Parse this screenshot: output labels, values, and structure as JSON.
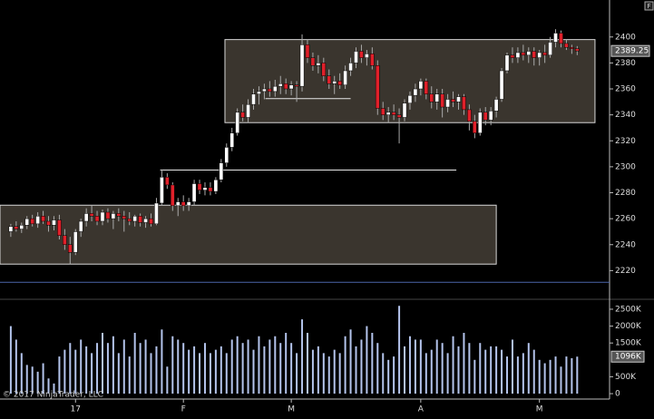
{
  "chart_data": {
    "type": "candlestick",
    "copyright": "© 2017 NinjaTrader, LLC",
    "corner_button": "F",
    "xlim": [
      -2,
      111
    ],
    "xticks": [
      {
        "value": 12,
        "label": "17"
      },
      {
        "value": 32,
        "label": "F"
      },
      {
        "value": 52,
        "label": "M"
      },
      {
        "value": 76,
        "label": "A"
      },
      {
        "value": 98,
        "label": "M"
      }
    ],
    "ylim": [
      2200,
      2425
    ],
    "yticks": [
      2220,
      2240,
      2260,
      2280,
      2300,
      2320,
      2340,
      2360,
      2380,
      2400
    ],
    "y2lim": [
      -160000,
      2660000
    ],
    "y2ticks": [
      0,
      {
        "value": 500000,
        "label": "500K"
      },
      {
        "value": 1500000,
        "label": "1500K"
      },
      {
        "value": 2000000,
        "label": "2000K"
      },
      {
        "value": 2500000,
        "label": "2500K"
      }
    ],
    "up_color": "#ffffff",
    "down_color": "#e0202a",
    "volume_color": "#b4c4ec",
    "last_price": 2389.25,
    "last_volume": {
      "value": 1096000,
      "label": "1096K"
    },
    "boxes": [
      {
        "x": [
          -2,
          90
        ],
        "y": [
          2225,
          2270.4
        ]
      },
      {
        "x": [
          39.7,
          108.3
        ],
        "y": [
          2334,
          2398
        ]
      }
    ],
    "lines": [
      {
        "x": [
          27.7,
          82.6
        ],
        "y": 2297.5,
        "color": "#e8e8e8"
      },
      {
        "x": [
          47.2,
          63
        ],
        "y": 2352.5,
        "color": "#e8e8e8"
      },
      {
        "x": [
          -2,
          111
        ],
        "y": 2211,
        "color": "#4a64a8"
      }
    ],
    "ohlc": [
      [
        2250,
        2256,
        2246,
        2254
      ],
      [
        2254,
        2258,
        2250,
        2252
      ],
      [
        2252,
        2257,
        2249,
        2255
      ],
      [
        2255,
        2262,
        2252,
        2260
      ],
      [
        2260,
        2263,
        2254,
        2256
      ],
      [
        2256,
        2265,
        2253,
        2262
      ],
      [
        2262,
        2266,
        2256,
        2258
      ],
      [
        2258,
        2262,
        2250,
        2255
      ],
      [
        2255,
        2262,
        2251,
        2259
      ],
      [
        2259,
        2263,
        2244,
        2247
      ],
      [
        2247,
        2252,
        2236,
        2240
      ],
      [
        2240,
        2246,
        2225,
        2234
      ],
      [
        2234,
        2252,
        2232,
        2250
      ],
      [
        2250,
        2260,
        2246,
        2258
      ],
      [
        2258,
        2268,
        2254,
        2264
      ],
      [
        2264,
        2270,
        2258,
        2262
      ],
      [
        2262,
        2266,
        2255,
        2258
      ],
      [
        2258,
        2267,
        2255,
        2265
      ],
      [
        2265,
        2268,
        2257,
        2260
      ],
      [
        2260,
        2266,
        2252,
        2264
      ],
      [
        2264,
        2268,
        2258,
        2262
      ],
      [
        2262,
        2266,
        2250,
        2260
      ],
      [
        2260,
        2265,
        2255,
        2258
      ],
      [
        2258,
        2263,
        2254,
        2262
      ],
      [
        2262,
        2264,
        2254,
        2257
      ],
      [
        2257,
        2262,
        2253,
        2260
      ],
      [
        2260,
        2264,
        2254,
        2256
      ],
      [
        2256,
        2276,
        2255,
        2272
      ],
      [
        2272,
        2298,
        2270,
        2292
      ],
      [
        2292,
        2295,
        2283,
        2286
      ],
      [
        2286,
        2288,
        2266,
        2270
      ],
      [
        2270,
        2276,
        2262,
        2273
      ],
      [
        2273,
        2278,
        2266,
        2270
      ],
      [
        2270,
        2276,
        2266,
        2273
      ],
      [
        2273,
        2290,
        2270,
        2287
      ],
      [
        2287,
        2290,
        2279,
        2282
      ],
      [
        2282,
        2288,
        2278,
        2284
      ],
      [
        2284,
        2288,
        2278,
        2281
      ],
      [
        2281,
        2292,
        2279,
        2290
      ],
      [
        2290,
        2306,
        2288,
        2303
      ],
      [
        2303,
        2318,
        2300,
        2315
      ],
      [
        2315,
        2330,
        2312,
        2326
      ],
      [
        2326,
        2345,
        2324,
        2342
      ],
      [
        2342,
        2348,
        2335,
        2338
      ],
      [
        2338,
        2352,
        2334,
        2348
      ],
      [
        2348,
        2360,
        2344,
        2356
      ],
      [
        2356,
        2362,
        2348,
        2358
      ],
      [
        2358,
        2364,
        2352,
        2360
      ],
      [
        2360,
        2366,
        2354,
        2358
      ],
      [
        2358,
        2367,
        2354,
        2362
      ],
      [
        2362,
        2370,
        2356,
        2364
      ],
      [
        2364,
        2368,
        2356,
        2360
      ],
      [
        2360,
        2366,
        2355,
        2363
      ],
      [
        2363,
        2366,
        2350,
        2362
      ],
      [
        2362,
        2402,
        2358,
        2394
      ],
      [
        2394,
        2398,
        2380,
        2384
      ],
      [
        2384,
        2388,
        2374,
        2378
      ],
      [
        2378,
        2386,
        2372,
        2380
      ],
      [
        2380,
        2384,
        2366,
        2370
      ],
      [
        2370,
        2375,
        2360,
        2364
      ],
      [
        2364,
        2370,
        2356,
        2366
      ],
      [
        2366,
        2372,
        2360,
        2363
      ],
      [
        2363,
        2378,
        2360,
        2374
      ],
      [
        2374,
        2384,
        2370,
        2380
      ],
      [
        2380,
        2392,
        2376,
        2389
      ],
      [
        2389,
        2394,
        2380,
        2384
      ],
      [
        2384,
        2390,
        2378,
        2387
      ],
      [
        2387,
        2392,
        2375,
        2378
      ],
      [
        2378,
        2382,
        2340,
        2345
      ],
      [
        2345,
        2350,
        2336,
        2340
      ],
      [
        2340,
        2346,
        2334,
        2342
      ],
      [
        2342,
        2348,
        2336,
        2340
      ],
      [
        2340,
        2345,
        2318,
        2338
      ],
      [
        2338,
        2352,
        2335,
        2349
      ],
      [
        2349,
        2358,
        2344,
        2355
      ],
      [
        2355,
        2364,
        2350,
        2360
      ],
      [
        2360,
        2368,
        2355,
        2366
      ],
      [
        2366,
        2368,
        2352,
        2356
      ],
      [
        2356,
        2362,
        2345,
        2350
      ],
      [
        2350,
        2360,
        2344,
        2356
      ],
      [
        2356,
        2360,
        2338,
        2346
      ],
      [
        2346,
        2356,
        2342,
        2352
      ],
      [
        2352,
        2358,
        2346,
        2350
      ],
      [
        2350,
        2356,
        2344,
        2354
      ],
      [
        2354,
        2356,
        2340,
        2344
      ],
      [
        2344,
        2348,
        2328,
        2335
      ],
      [
        2335,
        2340,
        2322,
        2326
      ],
      [
        2326,
        2345,
        2324,
        2342
      ],
      [
        2342,
        2346,
        2332,
        2336
      ],
      [
        2336,
        2346,
        2332,
        2343
      ],
      [
        2343,
        2354,
        2338,
        2352
      ],
      [
        2352,
        2376,
        2350,
        2374
      ],
      [
        2374,
        2388,
        2372,
        2386
      ],
      [
        2386,
        2392,
        2380,
        2384
      ],
      [
        2384,
        2392,
        2380,
        2388
      ],
      [
        2388,
        2394,
        2382,
        2386
      ],
      [
        2386,
        2392,
        2380,
        2389
      ],
      [
        2389,
        2392,
        2378,
        2384
      ],
      [
        2384,
        2390,
        2378,
        2388
      ],
      [
        2388,
        2394,
        2380,
        2386
      ],
      [
        2386,
        2400,
        2384,
        2396
      ],
      [
        2396,
        2406,
        2392,
        2403
      ],
      [
        2403,
        2405,
        2392,
        2395
      ],
      [
        2395,
        2398,
        2390,
        2392
      ],
      [
        2392,
        2394,
        2387,
        2391
      ],
      [
        2391,
        2393,
        2386,
        2389.25
      ]
    ],
    "volume": [
      2000000,
      1600000,
      1200000,
      850000,
      800000,
      650000,
      900000,
      450000,
      300000,
      1100000,
      1300000,
      1500000,
      1300000,
      1600000,
      1400000,
      1200000,
      1500000,
      1800000,
      1500000,
      1700000,
      1200000,
      1600000,
      1100000,
      1800000,
      1500000,
      1600000,
      1200000,
      1400000,
      1900000,
      800000,
      1700000,
      1600000,
      1500000,
      1300000,
      1400000,
      1200000,
      1500000,
      1200000,
      1300000,
      1400000,
      1200000,
      1600000,
      1700000,
      1500000,
      1600000,
      1300000,
      1700000,
      1400000,
      1600000,
      1700000,
      1500000,
      1800000,
      1500000,
      1200000,
      2200000,
      1800000,
      1300000,
      1400000,
      1200000,
      1100000,
      1300000,
      1200000,
      1700000,
      1900000,
      1400000,
      1600000,
      2000000,
      1800000,
      1500000,
      1200000,
      1000000,
      1100000,
      2600000,
      1400000,
      1700000,
      1600000,
      1600000,
      1200000,
      1300000,
      1600000,
      1500000,
      1200000,
      1700000,
      1400000,
      1800000,
      1500000,
      1000000,
      1500000,
      1300000,
      1400000,
      1400000,
      1300000,
      1100000,
      1600000,
      1100000,
      1200000,
      1500000,
      1300000,
      1000000,
      900000,
      1000000,
      1100000,
      800000,
      1100000,
      1050000,
      1096000
    ]
  }
}
